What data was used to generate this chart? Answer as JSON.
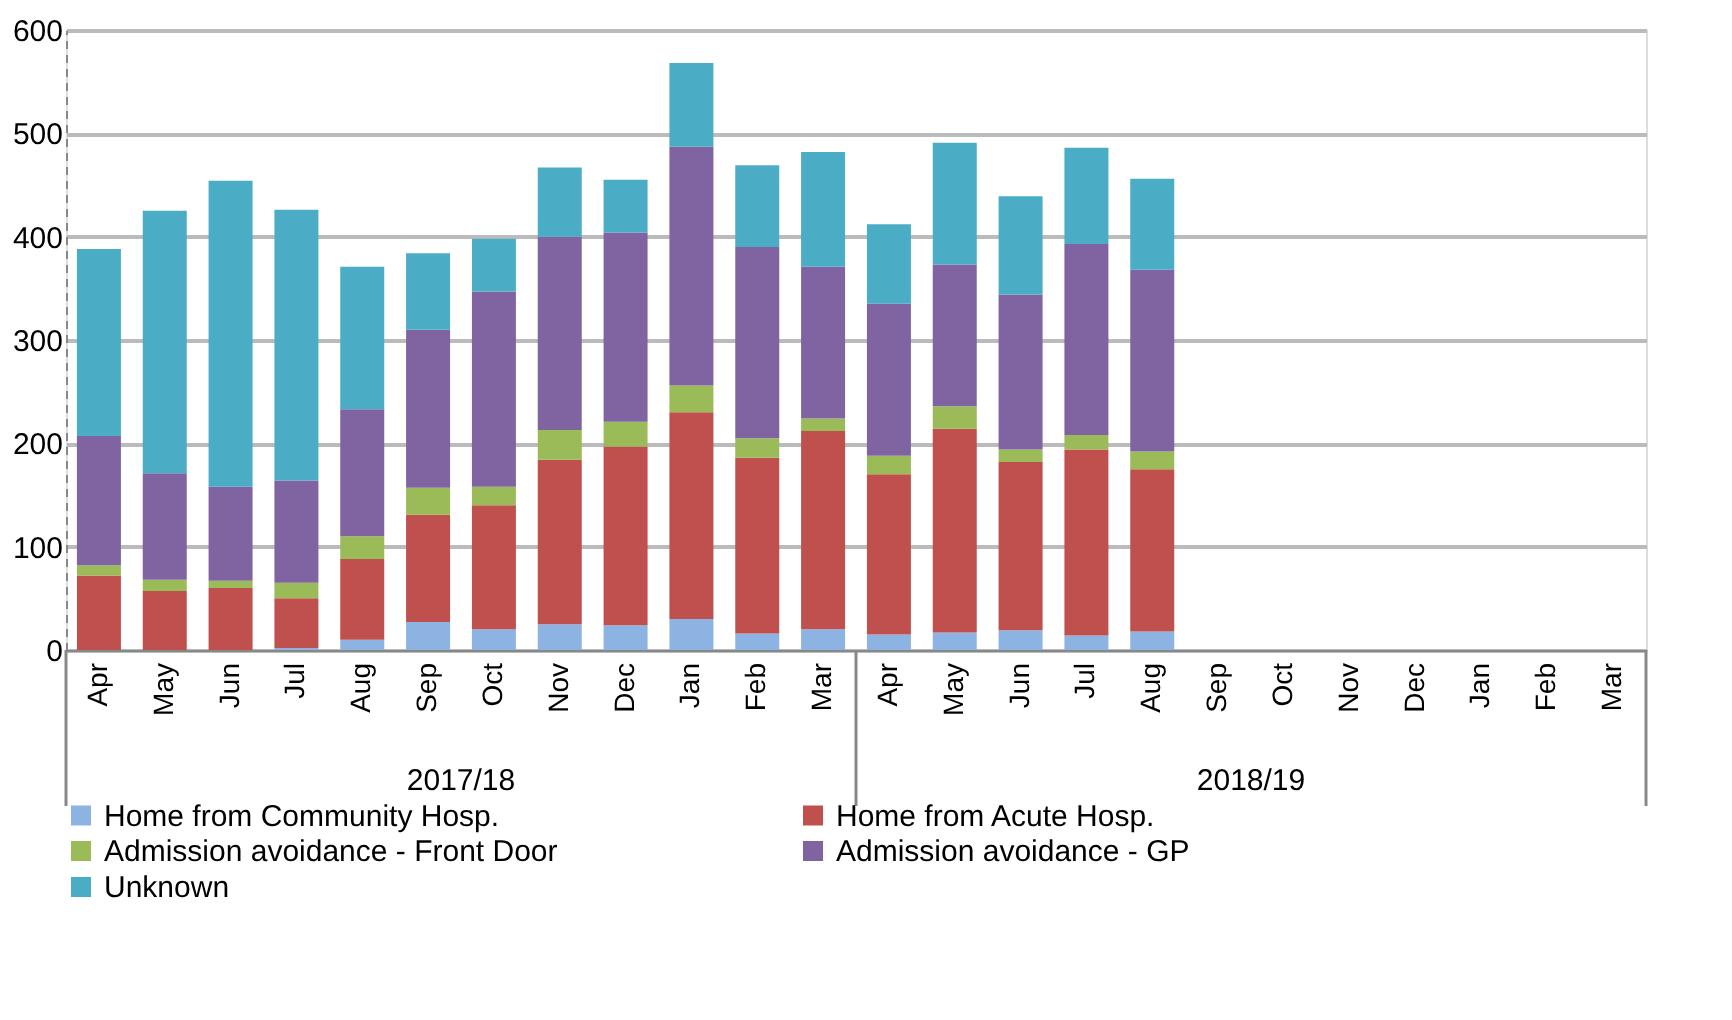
{
  "chart_data": {
    "type": "bar",
    "stacked": true,
    "categories": [
      "Apr",
      "May",
      "Jun",
      "Jul",
      "Aug",
      "Sep",
      "Oct",
      "Nov",
      "Dec",
      "Jan",
      "Feb",
      "Mar",
      "Apr",
      "May",
      "Jun",
      "Jul",
      "Aug",
      "Sep",
      "Oct",
      "Nov",
      "Dec",
      "Jan",
      "Feb",
      "Mar"
    ],
    "series": [
      {
        "name": "Home from Community Hosp.",
        "color": "#8db3e2",
        "values": [
          0,
          0,
          0,
          2,
          10,
          27,
          20,
          25,
          24,
          30,
          16,
          20,
          15,
          17,
          19,
          14,
          18,
          null,
          null,
          null,
          null,
          null,
          null,
          null
        ]
      },
      {
        "name": "Home from Acute Hosp.",
        "color": "#c0504d",
        "values": [
          72,
          57,
          60,
          48,
          78,
          104,
          120,
          159,
          173,
          200,
          170,
          192,
          155,
          197,
          163,
          180,
          157,
          null,
          null,
          null,
          null,
          null,
          null,
          null
        ]
      },
      {
        "name": "Admission avoidance - Front Door",
        "color": "#9bbb59",
        "values": [
          10,
          11,
          7,
          15,
          22,
          26,
          18,
          29,
          24,
          26,
          19,
          12,
          18,
          22,
          12,
          14,
          17,
          null,
          null,
          null,
          null,
          null,
          null,
          null
        ]
      },
      {
        "name": "Admission avoidance - GP",
        "color": "#8064a2",
        "values": [
          125,
          103,
          91,
          99,
          123,
          153,
          189,
          187,
          183,
          231,
          185,
          147,
          147,
          137,
          150,
          185,
          176,
          null,
          null,
          null,
          null,
          null,
          null,
          null
        ]
      },
      {
        "name": "Unknown",
        "color": "#4bacc6",
        "values": [
          181,
          254,
          296,
          262,
          138,
          74,
          51,
          67,
          51,
          81,
          79,
          111,
          77,
          118,
          95,
          93,
          88,
          null,
          null,
          null,
          null,
          null,
          null,
          null
        ]
      }
    ],
    "annotations": [
      "2017/18",
      "2018/19"
    ],
    "ylim": [
      0,
      600
    ],
    "yticks": [
      0,
      100,
      200,
      300,
      400,
      500,
      600
    ],
    "grid": "y",
    "legend": "bottom"
  }
}
